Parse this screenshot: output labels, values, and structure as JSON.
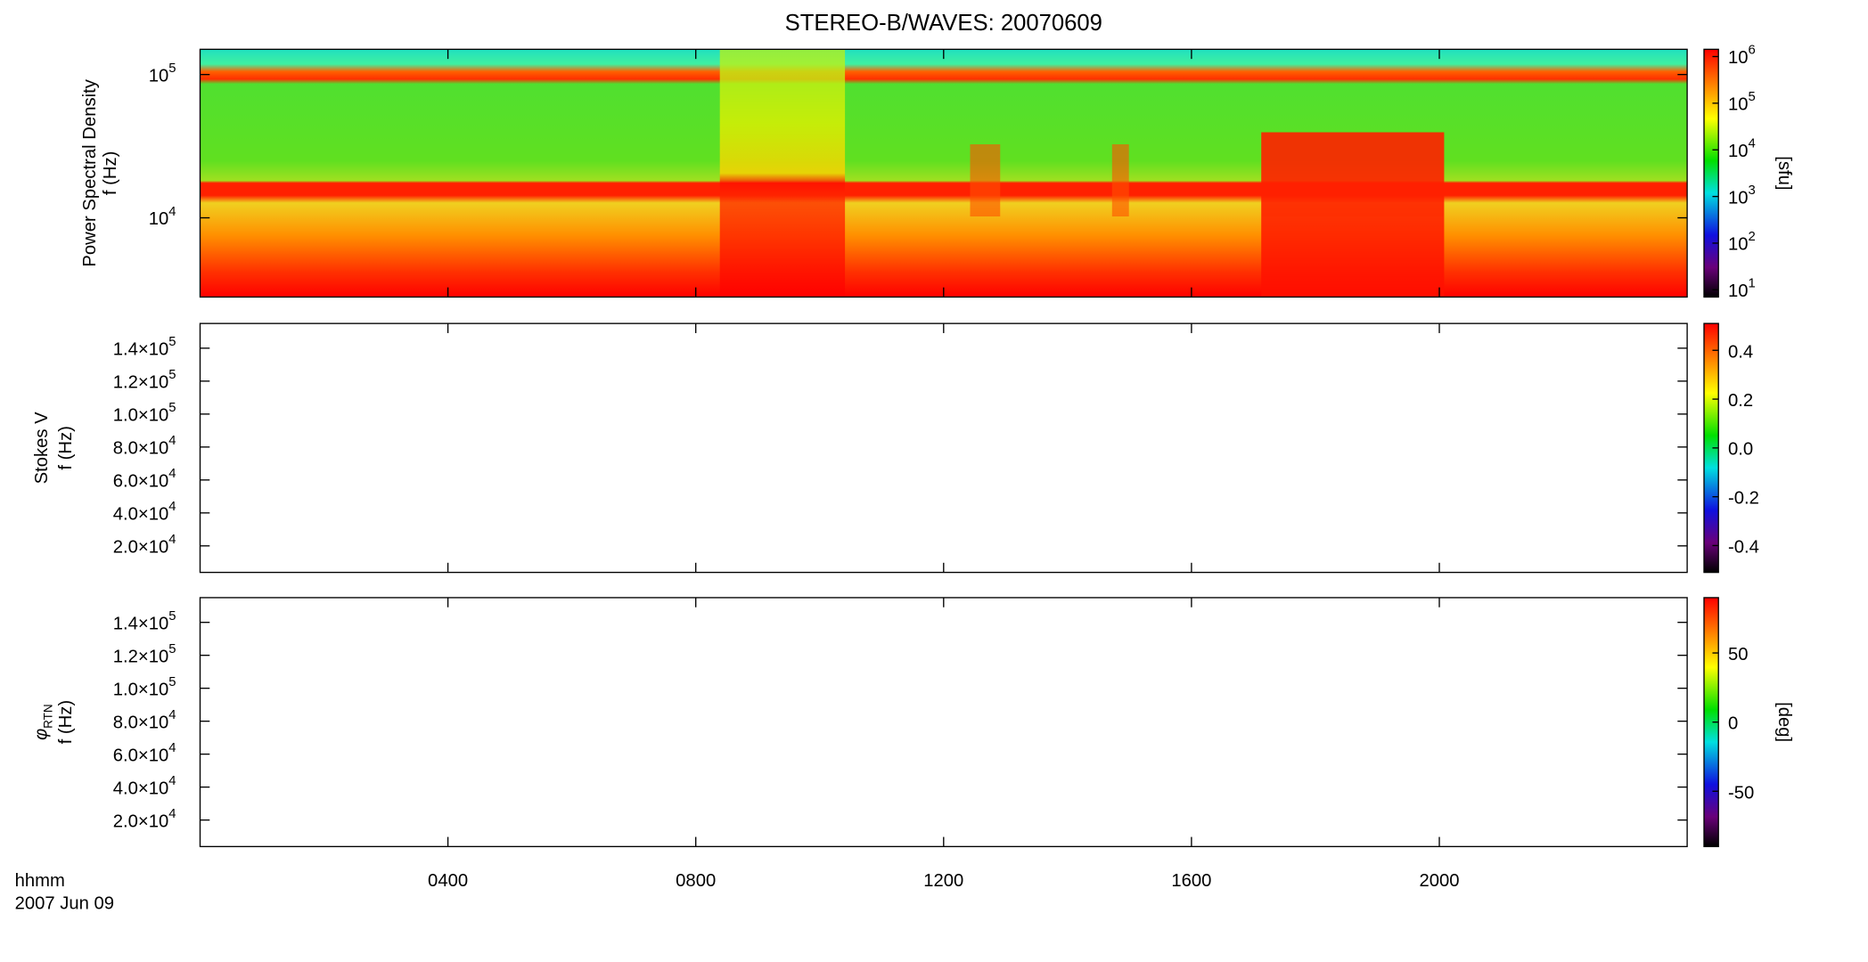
{
  "chart_data": {
    "type": "spectrogram",
    "title": "STEREO-B/WAVES: 20070609",
    "xlim": [
      0,
      24
    ],
    "xticks": [
      {
        "value": 4,
        "label": "0400"
      },
      {
        "value": 8,
        "label": "0800"
      },
      {
        "value": 12,
        "label": "1200"
      },
      {
        "value": 16,
        "label": "1600"
      },
      {
        "value": 20,
        "label": "2000"
      }
    ],
    "x_label": [
      "hhmm",
      "2007 Jun 09"
    ],
    "panels": [
      {
        "ylabel": [
          "Power Spectral Density",
          "f (Hz)"
        ],
        "ylog": true,
        "ylim": [
          2800,
          150000
        ],
        "yticks": [
          {
            "value": 10000,
            "label": "10",
            "exp": "4"
          },
          {
            "value": 100000,
            "label": "10",
            "exp": "5"
          }
        ],
        "clog": true,
        "clim": [
          7,
          1430000
        ],
        "cticks": [
          {
            "value": 10,
            "label": "10",
            "exp": "1"
          },
          {
            "value": 100,
            "label": "10",
            "exp": "2"
          },
          {
            "value": 1000,
            "label": "10",
            "exp": "3"
          },
          {
            "value": 10000,
            "label": "10",
            "exp": "4"
          },
          {
            "value": 100000,
            "label": "10",
            "exp": "5"
          },
          {
            "value": 1000000,
            "label": "10",
            "exp": "6"
          }
        ],
        "cunit": "[sfu]",
        "filled": true
      },
      {
        "ylabel": [
          "Stokes V",
          "f (Hz)"
        ],
        "ylog": false,
        "ylim": [
          3900,
          155000
        ],
        "yticks": [
          {
            "value": 20000,
            "label": "2.0×10",
            "exp": "4"
          },
          {
            "value": 40000,
            "label": "4.0×10",
            "exp": "4"
          },
          {
            "value": 60000,
            "label": "6.0×10",
            "exp": "4"
          },
          {
            "value": 80000,
            "label": "8.0×10",
            "exp": "4"
          },
          {
            "value": 100000,
            "label": "1.0×10",
            "exp": "5"
          },
          {
            "value": 120000,
            "label": "1.2×10",
            "exp": "5"
          },
          {
            "value": 140000,
            "label": "1.4×10",
            "exp": "5"
          }
        ],
        "clog": false,
        "clim": [
          -0.51,
          0.51
        ],
        "cticks": [
          -0.4,
          -0.2,
          {
            "value": 0,
            "label": "0.0"
          },
          0.2,
          0.4
        ],
        "filled": false
      },
      {
        "ylabel": [
          {
            "text": "φ",
            "sub": "RTN"
          },
          "f (Hz)"
        ],
        "ylog": false,
        "ylim": [
          3900,
          155000
        ],
        "yticks": [
          {
            "value": 20000,
            "label": "2.0×10",
            "exp": "4"
          },
          {
            "value": 40000,
            "label": "4.0×10",
            "exp": "4"
          },
          {
            "value": 60000,
            "label": "6.0×10",
            "exp": "4"
          },
          {
            "value": 80000,
            "label": "8.0×10",
            "exp": "4"
          },
          {
            "value": 100000,
            "label": "1.0×10",
            "exp": "5"
          },
          {
            "value": 120000,
            "label": "1.2×10",
            "exp": "5"
          },
          {
            "value": 140000,
            "label": "1.4×10",
            "exp": "5"
          }
        ],
        "clog": false,
        "clim": [
          -90,
          90
        ],
        "cticks": [
          -50,
          0,
          50
        ],
        "cunit": "[deg]",
        "filled": false
      }
    ]
  }
}
